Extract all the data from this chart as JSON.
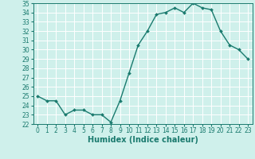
{
  "x": [
    0,
    1,
    2,
    3,
    4,
    5,
    6,
    7,
    8,
    9,
    10,
    11,
    12,
    13,
    14,
    15,
    16,
    17,
    18,
    19,
    20,
    21,
    22,
    23
  ],
  "y": [
    25.0,
    24.5,
    24.5,
    23.0,
    23.5,
    23.5,
    23.0,
    23.0,
    22.2,
    24.5,
    27.5,
    30.5,
    32.0,
    33.8,
    34.0,
    34.5,
    34.0,
    35.0,
    34.5,
    34.3,
    32.0,
    30.5,
    30.0,
    29.0
  ],
  "line_color": "#1a7a6e",
  "marker": "D",
  "markersize": 2.0,
  "linewidth": 1.0,
  "bg_color": "#cff0eb",
  "grid_color": "#ffffff",
  "xlabel": "Humidex (Indice chaleur)",
  "ylim": [
    22,
    35
  ],
  "xlim": [
    -0.5,
    23.5
  ],
  "yticks": [
    22,
    23,
    24,
    25,
    26,
    27,
    28,
    29,
    30,
    31,
    32,
    33,
    34,
    35
  ],
  "xticks": [
    0,
    1,
    2,
    3,
    4,
    5,
    6,
    7,
    8,
    9,
    10,
    11,
    12,
    13,
    14,
    15,
    16,
    17,
    18,
    19,
    20,
    21,
    22,
    23
  ],
  "tick_fontsize": 5.5,
  "xlabel_fontsize": 7.0,
  "tick_color": "#1a7a6e",
  "axis_color": "#1a7a6e"
}
